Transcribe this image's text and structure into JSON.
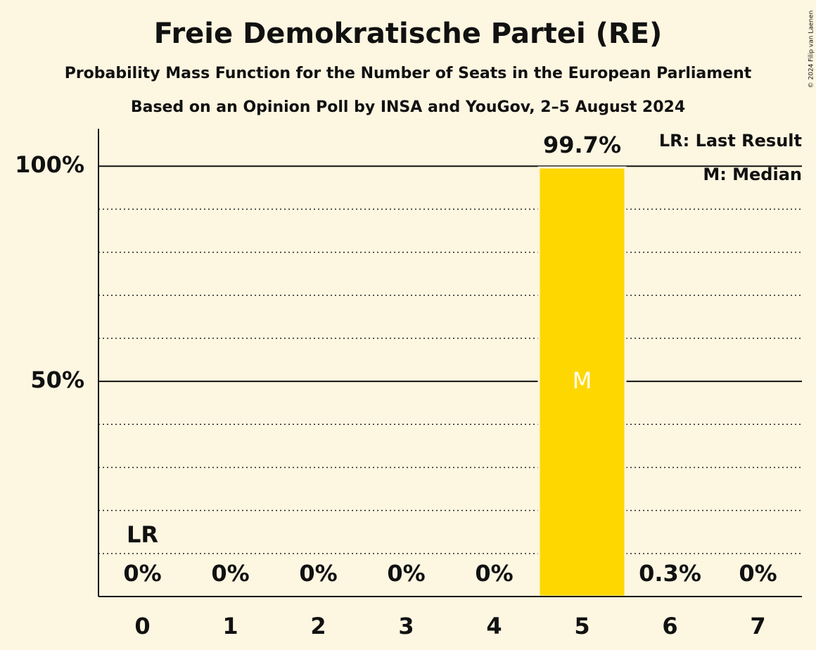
{
  "chart_data": {
    "type": "bar",
    "title": "Freie Demokratische Partei (RE)",
    "subtitle": "Probability Mass Function for the Number of Seats in the European Parliament",
    "subtitle2": "Based on an Opinion Poll by INSA and YouGov, 2–5 August 2024",
    "copyright": "© 2024 Filip van Laenen",
    "categories": [
      0,
      1,
      2,
      3,
      4,
      5,
      6,
      7
    ],
    "values": [
      0,
      0,
      0,
      0,
      0,
      99.7,
      0.3,
      0
    ],
    "value_labels": [
      "0%",
      "0%",
      "0%",
      "0%",
      "0%",
      "99.7%",
      "0.3%",
      "0%"
    ],
    "color": "#ffd700",
    "ylim": [
      0,
      108.7
    ],
    "yticks": [
      {
        "value": 50,
        "label": "50%"
      },
      {
        "value": 100,
        "label": "100%"
      }
    ],
    "minor_yticks": [
      10,
      20,
      30,
      40,
      60,
      70,
      80,
      90
    ],
    "grid": true,
    "markers": [
      {
        "label": "LR",
        "at": 0
      },
      {
        "label": "M",
        "at": 5
      }
    ],
    "legend": [
      "LR: Last Result",
      "M: Median"
    ],
    "legend_position": "upper right"
  }
}
